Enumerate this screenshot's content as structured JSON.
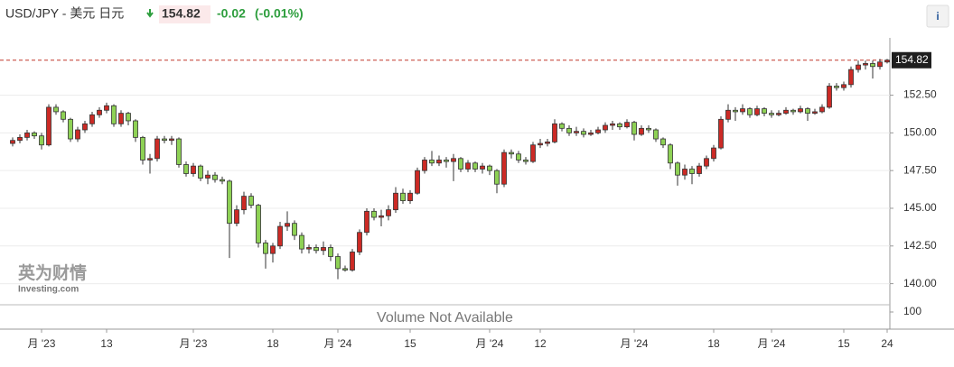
{
  "header": {
    "pair": "USD/JPY - 美元 日元",
    "price": "154.82",
    "change": "-0.02",
    "change_pct": "(-0.01%)"
  },
  "info_button": "i",
  "watermark": {
    "brand": "英为财情",
    "site": "Investing.com"
  },
  "chart_data": {
    "type": "candlestick",
    "up_color": "#cc2a25",
    "down_color": "#8ed155",
    "outline_color": "#333333",
    "last_price": 154.82,
    "last_price_color": "#c0392b",
    "ylim": [
      138.6,
      156.3
    ],
    "yticks": [
      {
        "value": 140,
        "label": "140.00"
      },
      {
        "value": 142.5,
        "label": "142.50"
      },
      {
        "value": 145,
        "label": "145.00"
      },
      {
        "value": 147.5,
        "label": "147.50"
      },
      {
        "value": 150,
        "label": "150.00"
      },
      {
        "value": 152.5,
        "label": "152.50"
      }
    ],
    "grid": true,
    "volume_pane": {
      "message": "Volume Not Available",
      "yticks": [
        100
      ]
    },
    "categories": [
      null,
      null,
      null,
      null,
      "月 '23",
      null,
      null,
      null,
      null,
      null,
      null,
      null,
      null,
      "13",
      null,
      null,
      null,
      null,
      null,
      null,
      null,
      null,
      null,
      null,
      null,
      "月 '23",
      null,
      null,
      null,
      null,
      null,
      null,
      null,
      null,
      null,
      null,
      "18",
      null,
      null,
      null,
      null,
      null,
      null,
      null,
      null,
      "月 '24",
      null,
      null,
      null,
      null,
      null,
      null,
      null,
      null,
      null,
      "15",
      null,
      null,
      null,
      null,
      null,
      null,
      null,
      null,
      null,
      null,
      "月 '24",
      null,
      null,
      null,
      null,
      null,
      null,
      "12",
      null,
      null,
      null,
      null,
      null,
      null,
      null,
      null,
      null,
      null,
      null,
      null,
      "月 '24",
      null,
      null,
      null,
      null,
      null,
      null,
      null,
      null,
      null,
      null,
      "18",
      null,
      null,
      null,
      null,
      null,
      null,
      null,
      "月 '24",
      null,
      null,
      null,
      null,
      null,
      null,
      null,
      null,
      null,
      "15",
      null,
      null,
      null,
      null,
      null,
      "24"
    ],
    "ohlc": [
      [
        149.3,
        149.7,
        149.1,
        149.5
      ],
      [
        149.5,
        149.9,
        149.3,
        149.7
      ],
      [
        149.7,
        150.2,
        149.5,
        150.0
      ],
      [
        150.0,
        150.1,
        149.6,
        149.8
      ],
      [
        149.8,
        150.0,
        148.9,
        149.2
      ],
      [
        149.2,
        151.9,
        149.1,
        151.7
      ],
      [
        151.7,
        151.9,
        151.2,
        151.4
      ],
      [
        151.4,
        151.5,
        150.7,
        150.9
      ],
      [
        150.9,
        151.0,
        149.4,
        149.6
      ],
      [
        149.6,
        150.4,
        149.4,
        150.2
      ],
      [
        150.2,
        150.8,
        150.0,
        150.6
      ],
      [
        150.6,
        151.4,
        150.4,
        151.2
      ],
      [
        151.2,
        151.7,
        151.0,
        151.5
      ],
      [
        151.5,
        152.0,
        151.3,
        151.8
      ],
      [
        151.8,
        151.9,
        150.4,
        150.6
      ],
      [
        150.6,
        151.5,
        150.4,
        151.3
      ],
      [
        151.3,
        151.4,
        150.5,
        150.8
      ],
      [
        150.8,
        150.9,
        149.4,
        149.7
      ],
      [
        149.7,
        149.8,
        147.9,
        148.2
      ],
      [
        148.2,
        148.6,
        147.3,
        148.3
      ],
      [
        148.3,
        149.8,
        148.1,
        149.6
      ],
      [
        149.6,
        149.8,
        149.3,
        149.5
      ],
      [
        149.5,
        149.8,
        149.2,
        149.6
      ],
      [
        149.6,
        149.7,
        147.7,
        147.9
      ],
      [
        147.9,
        148.1,
        147.1,
        147.3
      ],
      [
        147.3,
        148.0,
        147.1,
        147.8
      ],
      [
        147.8,
        147.9,
        146.8,
        147.0
      ],
      [
        147.0,
        147.5,
        146.6,
        147.2
      ],
      [
        147.2,
        147.4,
        146.7,
        146.9
      ],
      [
        146.9,
        147.1,
        146.6,
        146.8
      ],
      [
        146.8,
        146.9,
        141.7,
        144.0
      ],
      [
        144.0,
        145.2,
        143.8,
        144.9
      ],
      [
        144.9,
        146.1,
        144.6,
        145.8
      ],
      [
        145.8,
        146.0,
        145.0,
        145.2
      ],
      [
        145.2,
        145.3,
        142.4,
        142.7
      ],
      [
        142.7,
        142.9,
        141.0,
        142.0
      ],
      [
        142.0,
        142.7,
        141.4,
        142.5
      ],
      [
        142.5,
        144.1,
        142.3,
        143.8
      ],
      [
        143.8,
        144.8,
        143.5,
        144.0
      ],
      [
        144.0,
        144.2,
        142.9,
        143.2
      ],
      [
        143.2,
        143.4,
        142.0,
        142.3
      ],
      [
        142.3,
        142.6,
        142.0,
        142.4
      ],
      [
        142.4,
        142.6,
        142.0,
        142.2
      ],
      [
        142.2,
        142.8,
        141.9,
        142.4
      ],
      [
        142.4,
        142.6,
        141.5,
        141.8
      ],
      [
        141.8,
        142.0,
        140.3,
        141.0
      ],
      [
        141.0,
        141.2,
        140.8,
        140.9
      ],
      [
        140.9,
        142.3,
        140.8,
        142.1
      ],
      [
        142.1,
        143.6,
        141.9,
        143.4
      ],
      [
        143.4,
        145.0,
        143.2,
        144.8
      ],
      [
        144.8,
        145.0,
        144.2,
        144.4
      ],
      [
        144.4,
        144.9,
        143.8,
        144.5
      ],
      [
        144.5,
        145.2,
        144.2,
        144.9
      ],
      [
        144.9,
        146.4,
        144.7,
        146.0
      ],
      [
        146.0,
        146.3,
        145.3,
        145.5
      ],
      [
        145.5,
        146.2,
        145.3,
        146.0
      ],
      [
        146.0,
        147.7,
        145.9,
        147.5
      ],
      [
        147.5,
        148.4,
        147.3,
        148.2
      ],
      [
        148.2,
        148.8,
        147.8,
        148.0
      ],
      [
        148.0,
        148.5,
        147.8,
        148.2
      ],
      [
        148.2,
        148.4,
        147.7,
        148.1
      ],
      [
        148.1,
        148.6,
        146.8,
        148.3
      ],
      [
        148.3,
        148.4,
        147.4,
        147.6
      ],
      [
        147.6,
        148.2,
        147.4,
        148.0
      ],
      [
        148.0,
        148.1,
        147.4,
        147.6
      ],
      [
        147.6,
        148.0,
        147.3,
        147.8
      ],
      [
        147.8,
        147.9,
        147.2,
        147.5
      ],
      [
        147.5,
        147.6,
        146.0,
        146.6
      ],
      [
        146.6,
        148.9,
        146.4,
        148.7
      ],
      [
        148.7,
        148.9,
        148.3,
        148.6
      ],
      [
        148.6,
        148.8,
        148.0,
        148.2
      ],
      [
        148.2,
        148.4,
        147.9,
        148.1
      ],
      [
        148.1,
        149.4,
        148.0,
        149.2
      ],
      [
        149.2,
        149.6,
        149.0,
        149.3
      ],
      [
        149.3,
        149.6,
        149.1,
        149.4
      ],
      [
        149.4,
        150.9,
        149.3,
        150.6
      ],
      [
        150.6,
        150.7,
        150.1,
        150.3
      ],
      [
        150.3,
        150.5,
        149.8,
        150.0
      ],
      [
        150.0,
        150.4,
        149.8,
        150.1
      ],
      [
        150.1,
        150.3,
        149.7,
        149.9
      ],
      [
        149.9,
        150.2,
        149.8,
        150.0
      ],
      [
        150.0,
        150.4,
        149.9,
        150.2
      ],
      [
        150.2,
        150.7,
        150.0,
        150.5
      ],
      [
        150.5,
        150.8,
        150.2,
        150.6
      ],
      [
        150.6,
        150.7,
        150.2,
        150.4
      ],
      [
        150.4,
        150.9,
        150.3,
        150.7
      ],
      [
        150.7,
        150.8,
        149.5,
        149.9
      ],
      [
        149.9,
        150.5,
        149.8,
        150.3
      ],
      [
        150.3,
        150.5,
        150.0,
        150.2
      ],
      [
        150.2,
        150.3,
        149.4,
        149.6
      ],
      [
        149.6,
        149.7,
        149.0,
        149.2
      ],
      [
        149.2,
        149.3,
        147.6,
        148.0
      ],
      [
        148.0,
        148.1,
        146.5,
        147.2
      ],
      [
        147.2,
        147.9,
        146.9,
        147.6
      ],
      [
        147.6,
        147.8,
        146.6,
        147.3
      ],
      [
        147.3,
        148.0,
        147.1,
        147.8
      ],
      [
        147.8,
        148.5,
        147.6,
        148.3
      ],
      [
        148.3,
        149.2,
        148.1,
        149.0
      ],
      [
        149.0,
        151.1,
        148.9,
        150.9
      ],
      [
        150.9,
        151.9,
        150.7,
        151.5
      ],
      [
        151.5,
        151.7,
        150.8,
        151.4
      ],
      [
        151.4,
        151.9,
        151.2,
        151.6
      ],
      [
        151.6,
        151.7,
        151.0,
        151.2
      ],
      [
        151.2,
        151.8,
        151.1,
        151.6
      ],
      [
        151.6,
        151.7,
        151.1,
        151.3
      ],
      [
        151.3,
        151.5,
        151.0,
        151.2
      ],
      [
        151.2,
        151.5,
        151.1,
        151.3
      ],
      [
        151.3,
        151.7,
        151.2,
        151.5
      ],
      [
        151.5,
        151.6,
        151.2,
        151.4
      ],
      [
        151.4,
        151.8,
        151.3,
        151.6
      ],
      [
        151.6,
        151.7,
        150.8,
        151.3
      ],
      [
        151.3,
        151.6,
        151.2,
        151.4
      ],
      [
        151.4,
        151.9,
        151.3,
        151.7
      ],
      [
        151.7,
        153.3,
        151.6,
        153.1
      ],
      [
        153.1,
        153.3,
        152.8,
        153.0
      ],
      [
        153.0,
        153.4,
        152.8,
        153.2
      ],
      [
        153.2,
        154.4,
        153.0,
        154.2
      ],
      [
        154.2,
        154.8,
        154.0,
        154.5
      ],
      [
        154.5,
        154.8,
        154.2,
        154.6
      ],
      [
        154.6,
        154.8,
        153.6,
        154.4
      ],
      [
        154.4,
        154.9,
        154.2,
        154.7
      ],
      [
        154.7,
        154.9,
        154.6,
        154.82
      ]
    ]
  }
}
